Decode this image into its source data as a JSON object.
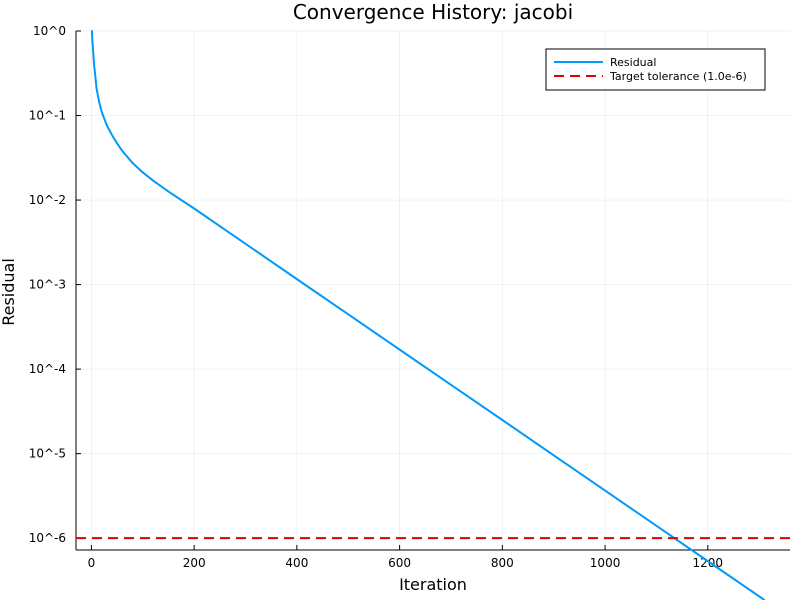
{
  "chart_data": {
    "type": "line",
    "title": "Convergence History: jacobi",
    "xlabel": "Iteration",
    "ylabel": "Residual",
    "xlim": [
      -30,
      1360
    ],
    "ylim": [
      -6.14,
      0.0
    ],
    "yscale": "log10",
    "x_ticks": [
      0,
      200,
      400,
      600,
      800,
      1000,
      1200
    ],
    "x_tick_labels": [
      "0",
      "200",
      "400",
      "600",
      "800",
      "1000",
      "1200"
    ],
    "y_ticks": [
      0,
      -1,
      -2,
      -3,
      -4,
      -5,
      -6
    ],
    "y_tick_labels": [
      "10^0",
      "10^-1",
      "10^-2",
      "10^-3",
      "10^-4",
      "10^-5",
      "10^-6"
    ],
    "grid": true,
    "legend_position": "top-right",
    "series": [
      {
        "name": "Residual",
        "color": "#009af9",
        "style": "solid",
        "x": [
          1,
          2,
          5,
          10,
          15,
          20,
          30,
          40,
          50,
          60,
          80,
          100,
          120,
          150,
          200,
          300,
          400,
          500,
          600,
          700,
          800,
          900,
          1000,
          1100,
          1200,
          1310
        ],
        "y": [
          1.0,
          0.76,
          0.41,
          0.21,
          0.145,
          0.111,
          0.0763,
          0.0589,
          0.0468,
          0.0382,
          0.0275,
          0.0212,
          0.017,
          0.0126,
          0.00794,
          0.00304,
          0.00116,
          0.000445,
          0.00017,
          6.52e-05,
          2.5e-05,
          9.56e-06,
          3.66e-06,
          1.4e-06,
          5.35e-07,
          1.86e-07
        ]
      },
      {
        "name": "Target tolerance (1.0e-6)",
        "color": "#e30000",
        "style": "dashed",
        "x": [
          -30,
          1360
        ],
        "y": [
          1e-06,
          1e-06
        ]
      }
    ]
  }
}
